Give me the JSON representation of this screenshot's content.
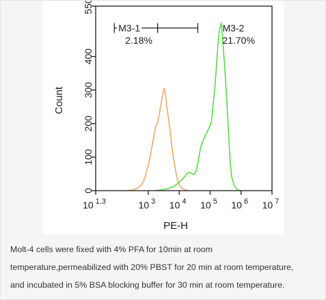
{
  "chart_data": {
    "type": "line",
    "title": "",
    "xlabel": "PE-H",
    "ylabel": "Count",
    "xscale": "log",
    "xlim": [
      20,
      10000000
    ],
    "ylim": [
      0,
      550
    ],
    "x_ticks": [
      {
        "value": 20,
        "base": "10",
        "exp": "1.3"
      },
      {
        "value": 1000,
        "base": "10",
        "exp": "3"
      },
      {
        "value": 10000,
        "base": "10",
        "exp": "4"
      },
      {
        "value": 100000,
        "base": "10",
        "exp": "5"
      },
      {
        "value": 1000000,
        "base": "10",
        "exp": "6"
      },
      {
        "value": 10000000,
        "base": "10",
        "exp": "7"
      }
    ],
    "y_ticks": [
      0,
      100,
      200,
      300,
      400,
      550
    ],
    "series": [
      {
        "color": "#f0a868",
        "x": [
          200,
          300,
          400,
          500,
          600,
          700,
          800,
          1000,
          1200,
          1400,
          1600,
          1800,
          2000,
          2300,
          2600,
          3000,
          3300,
          3700,
          4000,
          4500,
          5000,
          5500,
          6000,
          7000,
          8000,
          9000,
          10000,
          12000,
          14000,
          16000,
          20000
        ],
        "y": [
          0,
          2,
          5,
          10,
          18,
          28,
          42,
          75,
          110,
          145,
          175,
          195,
          200,
          230,
          260,
          290,
          305,
          280,
          250,
          215,
          185,
          150,
          120,
          80,
          50,
          30,
          18,
          8,
          4,
          2,
          0
        ]
      },
      {
        "color": "#55dd44",
        "x": [
          1500,
          2500,
          4000,
          6000,
          8000,
          10000,
          13000,
          16000,
          20000,
          25000,
          30000,
          35000,
          40000,
          45000,
          50000,
          60000,
          70000,
          80000,
          90000,
          100000,
          110000,
          120000,
          140000,
          160000,
          180000,
          200000,
          230000,
          260000,
          300000,
          350000,
          400000,
          450000,
          500000,
          600000,
          700000,
          800000,
          1000000
        ],
        "y": [
          0,
          2,
          5,
          10,
          18,
          25,
          35,
          45,
          55,
          52,
          48,
          58,
          80,
          110,
          130,
          150,
          165,
          175,
          185,
          195,
          205,
          240,
          300,
          370,
          440,
          480,
          500,
          440,
          360,
          260,
          160,
          80,
          40,
          15,
          6,
          2,
          0
        ]
      }
    ],
    "annotations": [
      {
        "label": "M3-1",
        "value": "2.18%",
        "range": [
          80,
          2000
        ]
      },
      {
        "label": "M3-2",
        "value": "21.70%",
        "range": [
          2000,
          40000
        ]
      }
    ]
  },
  "caption": {
    "lines": [
      "Molt-4 cells were fixed with 4% PFA for 10min at room",
      "temperature,permeabilized with 20% PBST for 20 min at room temperature,",
      "and incubated in 5% BSA blocking buffer for 30 min at room temperature."
    ]
  }
}
